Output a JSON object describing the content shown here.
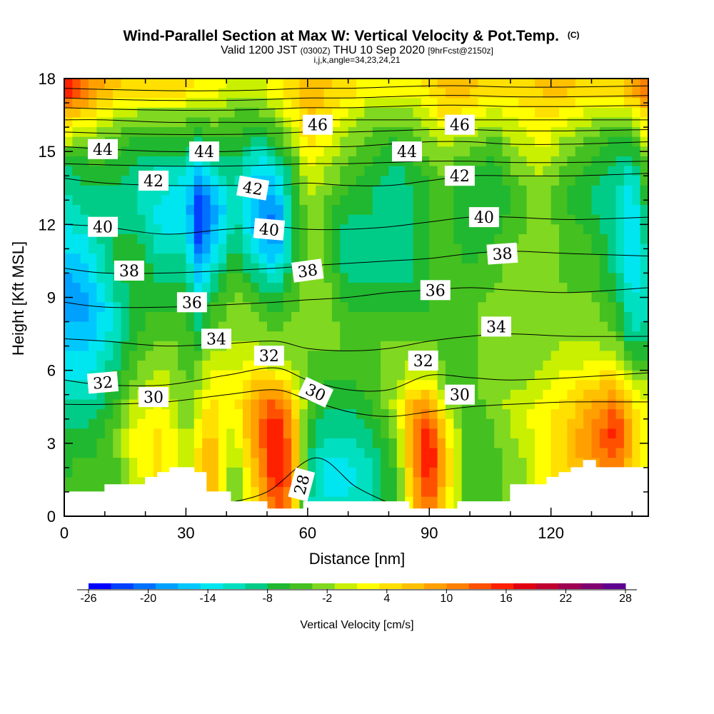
{
  "chart_data": {
    "type": "heatmap",
    "title": "Wind-Parallel Section at Max W: Vertical Velocity & Pot.Temp.",
    "title_mark": "(C)",
    "subtitle_main": "Valid 1200 JST",
    "subtitle_z": "(0300Z)",
    "subtitle_date": "THU 10 Sep 2020",
    "subtitle_fcst": "[9hrFcst@2150z]",
    "subtitle_ijk": "i,j,k,angle=34,23,24,21",
    "xlabel": "Distance [nm]",
    "ylabel": "Height [Kft MSL]",
    "xlim": [
      0,
      144
    ],
    "ylim": [
      0,
      18
    ],
    "x_ticks": [
      "0",
      "30",
      "60",
      "90",
      "120"
    ],
    "y_ticks": [
      "0",
      "3",
      "6",
      "9",
      "12",
      "15",
      "18"
    ],
    "colorbar": {
      "label": "Vertical Velocity [cm/s]",
      "min": -26,
      "max": 28,
      "tick_labels": [
        "-26",
        "-20",
        "-14",
        "-8",
        "-2",
        "4",
        "10",
        "16",
        "22",
        "28"
      ],
      "colors": [
        "#0000ff",
        "#0040ff",
        "#0070ff",
        "#00a0ff",
        "#00c8ff",
        "#00e6f0",
        "#00e0c0",
        "#00cc88",
        "#20b830",
        "#44c020",
        "#80d820",
        "#c8f000",
        "#ffff00",
        "#ffe000",
        "#ffc000",
        "#ffa000",
        "#ff8000",
        "#ff5000",
        "#ff2000",
        "#e00010",
        "#c00030",
        "#a00050",
        "#800070",
        "#600090"
      ]
    },
    "w_field": {
      "x": [
        0,
        6,
        12,
        18,
        24,
        30,
        33,
        36,
        42,
        48,
        52,
        56,
        60,
        64,
        70,
        76,
        82,
        86,
        90,
        94,
        100,
        106,
        112,
        118,
        124,
        130,
        136,
        140,
        144
      ],
      "y": [
        0.5,
        1.5,
        2.5,
        3.5,
        4.5,
        5.5,
        6.5,
        7.5,
        8.5,
        9.5,
        10.5,
        11.5,
        12.5,
        13.5,
        14.5,
        15.5,
        16.5,
        17.5
      ],
      "values": [
        [
          -6,
          -4,
          -6,
          0,
          2,
          -4,
          0,
          8,
          -4,
          6,
          14,
          10,
          -10,
          -12,
          -12,
          -10,
          -6,
          6,
          14,
          4,
          -6,
          -4,
          -2,
          0,
          2,
          4,
          6,
          2,
          0
        ],
        [
          -6,
          -4,
          -6,
          0,
          4,
          -2,
          4,
          10,
          -4,
          8,
          16,
          12,
          -8,
          -14,
          -14,
          -10,
          -6,
          8,
          16,
          6,
          -6,
          -4,
          -2,
          2,
          4,
          6,
          10,
          4,
          0
        ],
        [
          -6,
          -6,
          -4,
          2,
          4,
          -2,
          4,
          8,
          -2,
          10,
          18,
          12,
          -8,
          -12,
          -12,
          -10,
          -4,
          10,
          18,
          6,
          -6,
          -4,
          -2,
          2,
          6,
          10,
          14,
          6,
          2
        ],
        [
          -8,
          -8,
          -4,
          2,
          4,
          -2,
          2,
          6,
          0,
          12,
          18,
          10,
          -6,
          -10,
          -10,
          -8,
          -2,
          10,
          16,
          4,
          -6,
          -4,
          0,
          2,
          6,
          10,
          16,
          6,
          2
        ],
        [
          -10,
          -10,
          -6,
          0,
          2,
          -4,
          0,
          4,
          2,
          10,
          14,
          8,
          -4,
          -8,
          -8,
          -6,
          0,
          8,
          10,
          0,
          -6,
          -2,
          0,
          2,
          4,
          8,
          12,
          4,
          2
        ],
        [
          -12,
          -12,
          -8,
          -2,
          0,
          -4,
          -2,
          2,
          2,
          6,
          6,
          2,
          -4,
          -6,
          -6,
          -4,
          -2,
          2,
          2,
          -4,
          -4,
          -2,
          -2,
          0,
          2,
          4,
          6,
          0,
          -2
        ],
        [
          -14,
          -14,
          -10,
          -4,
          -2,
          -4,
          -4,
          0,
          0,
          0,
          -2,
          -2,
          -4,
          -4,
          -4,
          -4,
          -2,
          -2,
          -2,
          -4,
          -4,
          -2,
          -2,
          -2,
          0,
          0,
          0,
          -6,
          -6
        ],
        [
          -16,
          -16,
          -12,
          -6,
          -4,
          -4,
          -8,
          -4,
          -2,
          -2,
          -4,
          -2,
          -2,
          -2,
          -4,
          -4,
          -4,
          -4,
          -4,
          -4,
          -4,
          -2,
          -2,
          -2,
          -2,
          -2,
          -4,
          -10,
          -10
        ],
        [
          -18,
          -18,
          -12,
          -6,
          -6,
          -6,
          -10,
          -6,
          -2,
          -4,
          -6,
          -4,
          -2,
          -2,
          -6,
          -6,
          -6,
          -6,
          -6,
          -4,
          -4,
          -2,
          -2,
          -2,
          -2,
          -2,
          -6,
          -12,
          -10
        ],
        [
          -18,
          -16,
          -10,
          -6,
          -8,
          -8,
          -14,
          -10,
          -4,
          -8,
          -10,
          -6,
          -2,
          -2,
          -8,
          -8,
          -8,
          -8,
          -6,
          -4,
          -6,
          -4,
          -2,
          -2,
          -4,
          -4,
          -8,
          -14,
          -10
        ],
        [
          -16,
          -14,
          -8,
          -6,
          -10,
          -10,
          -18,
          -14,
          -6,
          -12,
          -16,
          -8,
          -2,
          -4,
          -10,
          -10,
          -10,
          -8,
          -6,
          -4,
          -6,
          -4,
          -2,
          -2,
          -4,
          -4,
          -10,
          -16,
          -10
        ],
        [
          -14,
          -12,
          -8,
          -8,
          -12,
          -12,
          -22,
          -18,
          -8,
          -16,
          -20,
          -10,
          -2,
          -4,
          -10,
          -10,
          -10,
          -8,
          -6,
          -4,
          -8,
          -6,
          -4,
          -2,
          -4,
          -6,
          -10,
          -16,
          -8
        ],
        [
          -12,
          -10,
          -8,
          -10,
          -14,
          -14,
          -24,
          -20,
          -10,
          -18,
          -20,
          -10,
          -2,
          -4,
          -8,
          -8,
          -10,
          -8,
          -6,
          -4,
          -8,
          -8,
          -4,
          -2,
          -6,
          -8,
          -10,
          -16,
          -6
        ],
        [
          -10,
          -8,
          -8,
          -10,
          -12,
          -14,
          -20,
          -16,
          -10,
          -18,
          -16,
          -8,
          0,
          -2,
          -6,
          -8,
          -10,
          -8,
          -6,
          -4,
          -8,
          -8,
          -4,
          -2,
          -6,
          -8,
          -10,
          -14,
          -4
        ],
        [
          -8,
          -6,
          -6,
          -8,
          -10,
          -10,
          -14,
          -10,
          -8,
          -14,
          -12,
          -6,
          2,
          0,
          -4,
          -6,
          -8,
          -6,
          -4,
          -2,
          -6,
          -6,
          -2,
          0,
          -4,
          -6,
          -8,
          -10,
          -2
        ],
        [
          0,
          -2,
          -4,
          -6,
          -6,
          -6,
          -8,
          -6,
          -6,
          -8,
          -6,
          -2,
          4,
          2,
          -2,
          -4,
          -6,
          -4,
          -2,
          0,
          -2,
          -4,
          0,
          2,
          -2,
          -4,
          -6,
          -6,
          2
        ],
        [
          6,
          4,
          0,
          -2,
          -2,
          -2,
          -4,
          -2,
          -4,
          -4,
          -2,
          2,
          6,
          4,
          0,
          -2,
          -2,
          -2,
          0,
          4,
          2,
          0,
          2,
          4,
          2,
          0,
          -2,
          0,
          6
        ],
        [
          18,
          10,
          6,
          4,
          4,
          4,
          2,
          2,
          0,
          0,
          2,
          4,
          8,
          6,
          4,
          2,
          2,
          2,
          4,
          6,
          6,
          4,
          4,
          6,
          6,
          4,
          4,
          8,
          12
        ]
      ]
    },
    "theta_contours": [
      {
        "label": "28",
        "x": [
          39,
          50,
          62,
          72,
          82
        ],
        "y": [
          0.5,
          1.0,
          2.4,
          1.2,
          0.4
        ]
      },
      {
        "label": "30",
        "x": [
          0,
          10,
          25,
          40,
          52,
          60,
          70,
          80,
          90,
          100,
          110,
          125,
          144
        ],
        "y": [
          4.6,
          4.6,
          4.7,
          5.0,
          5.2,
          4.8,
          4.3,
          4.1,
          4.3,
          4.5,
          4.6,
          4.7,
          4.7
        ]
      },
      {
        "label": "32",
        "x": [
          0,
          10,
          25,
          40,
          52,
          60,
          70,
          80,
          90,
          100,
          110,
          125,
          144
        ],
        "y": [
          5.6,
          5.4,
          5.4,
          5.8,
          6.1,
          5.6,
          5.2,
          5.2,
          5.8,
          5.7,
          5.6,
          5.7,
          5.9
        ]
      },
      {
        "label": "34",
        "x": [
          0,
          10,
          25,
          40,
          52,
          60,
          70,
          80,
          90,
          100,
          110,
          125,
          144
        ],
        "y": [
          7.3,
          7.2,
          7.0,
          7.1,
          7.2,
          6.9,
          6.8,
          6.9,
          7.2,
          7.4,
          7.5,
          7.4,
          7.4
        ]
      },
      {
        "label": "36",
        "x": [
          0,
          10,
          25,
          40,
          52,
          60,
          70,
          80,
          90,
          100,
          110,
          125,
          144
        ],
        "y": [
          8.8,
          8.6,
          8.6,
          8.7,
          8.8,
          8.9,
          9.0,
          9.2,
          9.3,
          9.4,
          9.3,
          9.2,
          9.4
        ]
      },
      {
        "label": "38",
        "x": [
          0,
          10,
          25,
          40,
          52,
          60,
          70,
          80,
          90,
          100,
          110,
          125,
          144
        ],
        "y": [
          10.2,
          10.0,
          10.0,
          10.1,
          10.2,
          10.3,
          10.4,
          10.5,
          10.6,
          10.8,
          10.9,
          10.8,
          10.7
        ]
      },
      {
        "label": "40",
        "x": [
          0,
          10,
          25,
          40,
          52,
          60,
          70,
          80,
          90,
          100,
          110,
          125,
          144
        ],
        "y": [
          12.0,
          11.9,
          11.6,
          11.8,
          11.9,
          11.8,
          11.8,
          11.9,
          12.1,
          12.3,
          12.3,
          12.2,
          12.3
        ]
      },
      {
        "label": "42",
        "x": [
          0,
          10,
          25,
          40,
          52,
          60,
          70,
          80,
          90,
          100,
          110,
          125,
          144
        ],
        "y": [
          13.9,
          13.7,
          13.6,
          13.6,
          13.6,
          13.7,
          13.6,
          13.6,
          13.8,
          14.0,
          14.0,
          14.0,
          14.1
        ]
      },
      {
        "label": "44",
        "x": [
          0,
          10,
          25,
          40,
          52,
          60,
          70,
          80,
          90,
          100,
          110,
          125,
          144
        ],
        "y": [
          15.2,
          15.1,
          15.0,
          15.0,
          15.1,
          15.2,
          15.2,
          15.3,
          15.4,
          15.4,
          15.3,
          15.3,
          15.4
        ]
      },
      {
        "label": "46",
        "x": [
          0,
          10,
          25,
          40,
          52,
          60,
          70,
          80,
          90,
          100,
          110,
          125,
          144
        ],
        "y": [
          16.3,
          16.3,
          16.2,
          16.2,
          16.2,
          16.3,
          16.3,
          16.3,
          16.3,
          16.3,
          16.3,
          16.3,
          16.3
        ]
      }
    ],
    "theta_extra_isentropes": [
      14.5,
      15.8,
      16.8,
      17.2,
      17.6
    ],
    "contour_labels": [
      {
        "text": "44",
        "x": 9.5,
        "y": 15.1,
        "angle": 0
      },
      {
        "text": "44",
        "x": 34.5,
        "y": 15.0,
        "angle": 0
      },
      {
        "text": "44",
        "x": 84.5,
        "y": 15.0,
        "angle": 0
      },
      {
        "text": "46",
        "x": 62.5,
        "y": 16.1,
        "angle": 0
      },
      {
        "text": "46",
        "x": 97.5,
        "y": 16.1,
        "angle": 0
      },
      {
        "text": "42",
        "x": 22,
        "y": 13.8,
        "angle": 0
      },
      {
        "text": "42",
        "x": 46.5,
        "y": 13.5,
        "angle": 10
      },
      {
        "text": "42",
        "x": 97.5,
        "y": 14.0,
        "angle": 0
      },
      {
        "text": "40",
        "x": 9.5,
        "y": 11.9,
        "angle": 0
      },
      {
        "text": "40",
        "x": 50.5,
        "y": 11.8,
        "angle": 5
      },
      {
        "text": "40",
        "x": 103.5,
        "y": 12.3,
        "angle": 0
      },
      {
        "text": "38",
        "x": 16,
        "y": 10.1,
        "angle": 0
      },
      {
        "text": "38",
        "x": 60,
        "y": 10.1,
        "angle": -8
      },
      {
        "text": "38",
        "x": 108,
        "y": 10.8,
        "angle": -4
      },
      {
        "text": "36",
        "x": 31.5,
        "y": 8.8,
        "angle": 0
      },
      {
        "text": "36",
        "x": 91.5,
        "y": 9.3,
        "angle": 0
      },
      {
        "text": "34",
        "x": 37.5,
        "y": 7.3,
        "angle": 0
      },
      {
        "text": "34",
        "x": 106.5,
        "y": 7.8,
        "angle": 0
      },
      {
        "text": "32",
        "x": 9.5,
        "y": 5.5,
        "angle": -5
      },
      {
        "text": "32",
        "x": 50.5,
        "y": 6.6,
        "angle": 0
      },
      {
        "text": "32",
        "x": 88.5,
        "y": 6.4,
        "angle": 0
      },
      {
        "text": "30",
        "x": 22,
        "y": 4.9,
        "angle": 0
      },
      {
        "text": "30",
        "x": 62,
        "y": 5.1,
        "angle": 25
      },
      {
        "text": "30",
        "x": 97.5,
        "y": 5.0,
        "angle": 0
      },
      {
        "text": "28",
        "x": 58.5,
        "y": 1.3,
        "angle": -75
      }
    ],
    "terrain": {
      "x": [
        0,
        10,
        10,
        20,
        20,
        23,
        23,
        26,
        26,
        32,
        32,
        35,
        35,
        41,
        41,
        50,
        50,
        59,
        59,
        85,
        85,
        97,
        97,
        110,
        110,
        119,
        119,
        122,
        122,
        125,
        125,
        128,
        128,
        131,
        131,
        144
      ],
      "y": [
        1.0,
        1.0,
        1.3,
        1.3,
        1.6,
        1.6,
        1.8,
        1.8,
        2.0,
        2.0,
        1.8,
        1.8,
        1.0,
        1.0,
        0.6,
        0.6,
        0.3,
        0.3,
        0.6,
        0.6,
        0.3,
        0.3,
        0.6,
        0.6,
        1.3,
        1.3,
        1.6,
        1.6,
        1.8,
        1.8,
        2.0,
        2.0,
        2.3,
        2.3,
        2.0,
        2.0
      ]
    }
  }
}
